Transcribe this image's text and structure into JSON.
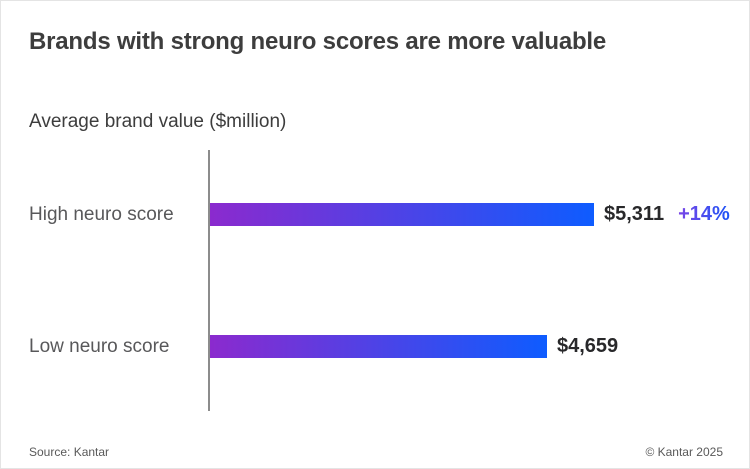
{
  "page": {
    "title": "Brands with strong neuro scores are more valuable",
    "subtitle": "Average brand value ($million)",
    "footer": {
      "source": "Source: Kantar",
      "copyright": "© Kantar 2025"
    }
  },
  "chart_data": {
    "type": "bar",
    "orientation": "horizontal",
    "title": "Brands with strong neuro scores are more valuable",
    "xlabel": "Average brand value ($million)",
    "categories": [
      "High neuro score",
      "Low neuro score"
    ],
    "values": [
      5311,
      4659
    ],
    "value_labels": [
      "$5,311",
      "$4,659"
    ],
    "annotations": [
      "+14%",
      ""
    ],
    "xlim": [
      0,
      5311
    ],
    "grid": false,
    "legend": false,
    "bar_gradient": [
      "#8b2ace",
      "#0e5cff"
    ],
    "annotation_gradient": [
      "#7a45e6",
      "#1b54f7"
    ]
  },
  "colors": {
    "title_text": "#3d3d3d",
    "label_text": "#58585a",
    "value_text": "#28282a",
    "axis_line": "#8c8c8c",
    "footer_text": "#595959"
  }
}
